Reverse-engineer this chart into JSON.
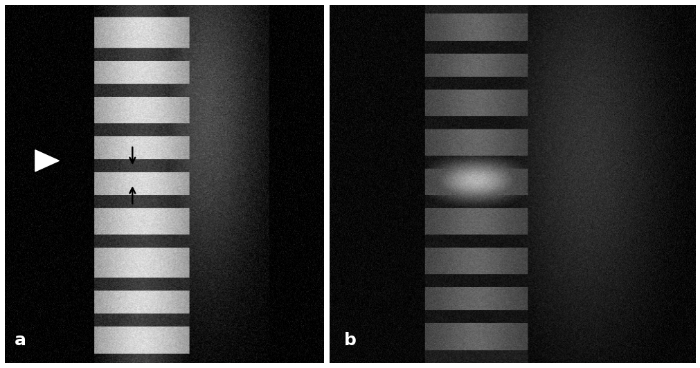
{
  "figure_width": 10.11,
  "figure_height": 5.32,
  "dpi": 100,
  "background_color": "#ffffff",
  "panel_a_label": "a",
  "panel_b_label": "b",
  "label_color": "#ffffff",
  "label_fontsize": 18,
  "label_fontweight": "bold",
  "panel_a_bg": "#000000",
  "panel_b_bg": "#000000"
}
